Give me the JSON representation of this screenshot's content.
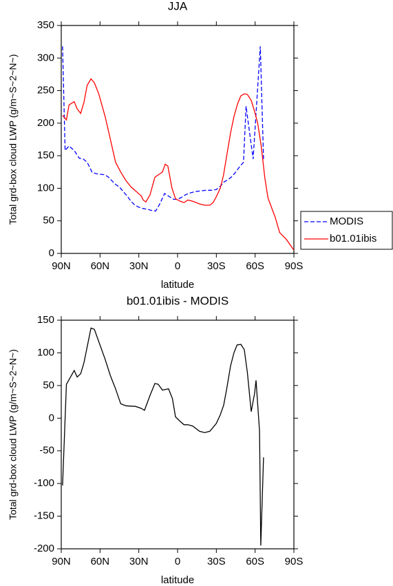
{
  "chart_data": [
    {
      "type": "line",
      "title": "JJA",
      "xlabel": "latitude",
      "ylabel": "Total grd-box cloud LWP (g/m~S~2~N~)",
      "xlim": [
        90,
        -90
      ],
      "ylim": [
        0,
        350
      ],
      "xticks": [
        {
          "value": 90,
          "label": "90N"
        },
        {
          "value": 60,
          "label": "60N"
        },
        {
          "value": 30,
          "label": "30N"
        },
        0,
        {
          "value": -30,
          "label": "30S"
        },
        {
          "value": -60,
          "label": "60S"
        },
        {
          "value": -90,
          "label": "90S"
        }
      ],
      "yticks": [
        0,
        50,
        100,
        150,
        200,
        250,
        300,
        350
      ],
      "legend": "right",
      "series": [
        {
          "name": "MODIS",
          "color": "#0000ff",
          "linestyle": "dashed",
          "x": [
            89,
            87,
            84,
            80,
            76,
            73,
            70,
            66,
            62,
            57,
            54,
            51,
            48,
            45,
            42,
            39,
            36,
            33,
            30,
            27,
            24,
            20,
            17,
            14,
            10,
            7,
            3,
            0,
            -3,
            -6,
            -10,
            -14,
            -18,
            -22,
            -26,
            -30,
            -33,
            -36,
            -39,
            -42,
            -45,
            -48,
            -51,
            -53,
            -58.5,
            -64,
            -66.5
          ],
          "values": [
            318,
            158,
            165,
            158,
            146,
            145,
            140,
            124,
            122,
            121,
            118,
            112,
            106,
            102,
            95,
            88,
            80,
            74,
            71,
            69,
            68,
            66,
            65,
            75,
            92,
            88,
            83,
            83,
            86,
            90,
            93,
            95,
            96,
            97,
            97,
            98,
            103,
            110,
            113,
            118,
            125,
            133,
            140,
            226,
            145,
            318,
            145
          ]
        },
        {
          "name": "b01.01ibis",
          "color": "#ff0000",
          "linestyle": "solid",
          "x": [
            89,
            86,
            84,
            80,
            77.7,
            75,
            72.4,
            70,
            67,
            64.4,
            61,
            56,
            52,
            48,
            44,
            40,
            36,
            32.5,
            28,
            26.6,
            24.5,
            21.3,
            17.6,
            13.9,
            11.7,
            9.6,
            7.5,
            4.3,
            1.6,
            -2,
            -5,
            -8,
            -11.7,
            -17,
            -21,
            -25,
            -27.5,
            -30,
            -33,
            -35.5,
            -38,
            -41,
            -43.6,
            -46.5,
            -49,
            -51.6,
            -54,
            -57,
            -59.6,
            -62,
            -64.7,
            -67.6,
            -70,
            -75.6,
            -79,
            -84,
            -90
          ],
          "values": [
            212,
            205,
            228,
            233,
            222,
            215,
            232,
            258,
            268,
            262,
            245,
            210,
            175,
            140,
            125,
            112,
            102,
            96,
            88,
            82,
            79,
            90,
            117,
            122,
            125,
            137,
            134,
            100,
            84,
            80,
            78,
            82,
            80,
            76,
            74,
            74,
            78,
            87,
            100,
            120,
            150,
            185,
            210,
            230,
            242,
            245,
            244,
            235,
            218,
            200,
            165,
            115,
            85,
            55,
            32,
            22,
            5
          ]
        }
      ]
    },
    {
      "type": "line",
      "title": "b01.01ibis - MODIS",
      "xlabel": "latitude",
      "ylabel": "Total grd-box cloud LWP (g/m~S~2~N~)",
      "xlim": [
        90,
        -90
      ],
      "ylim": [
        -200,
        150
      ],
      "xticks": [
        {
          "value": 90,
          "label": "90N"
        },
        {
          "value": 60,
          "label": "60N"
        },
        {
          "value": 30,
          "label": "30N"
        },
        0,
        {
          "value": -30,
          "label": "30S"
        },
        {
          "value": -60,
          "label": "60S"
        },
        {
          "value": -90,
          "label": "90S"
        }
      ],
      "yticks": [
        -200,
        -150,
        -100,
        -50,
        0,
        50,
        100,
        150
      ],
      "series": [
        {
          "color": "#000000",
          "linestyle": "solid",
          "x": [
            89,
            86,
            80,
            77.7,
            75,
            72.4,
            67,
            64.4,
            56,
            52,
            48,
            44,
            40,
            32.5,
            28,
            25.6,
            21.3,
            17.6,
            15,
            11.7,
            7,
            4,
            1.6,
            -2,
            -5,
            -8,
            -11.7,
            -17,
            -21,
            -25,
            -30,
            -33,
            -35.7,
            -38,
            -41,
            -43.6,
            -46,
            -49,
            -51.6,
            -54,
            -57,
            -59.6,
            -60.7,
            -63.4,
            -64.4,
            -66.5
          ],
          "values": [
            -103,
            52,
            73,
            63,
            68,
            85,
            138,
            136,
            90,
            65,
            45,
            22,
            19,
            18,
            15,
            12,
            35,
            53,
            52,
            43,
            45,
            30,
            2,
            -5,
            -10,
            -10,
            -12,
            -20,
            -22,
            -20,
            -8,
            5,
            20,
            45,
            80,
            100,
            112,
            113,
            105,
            70,
            10,
            38,
            58,
            -20,
            -195,
            -60
          ]
        }
      ]
    }
  ]
}
